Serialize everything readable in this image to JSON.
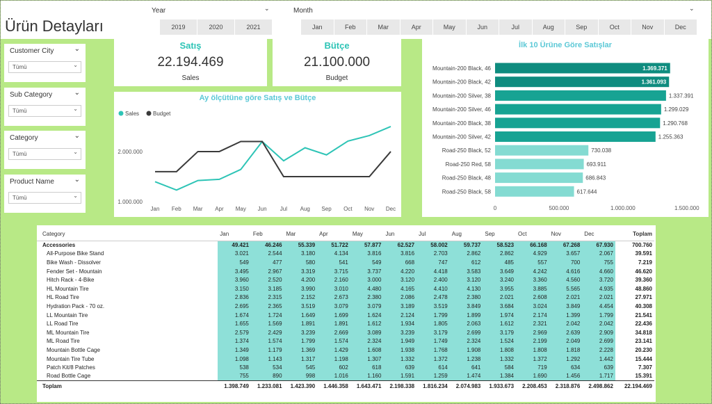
{
  "header": {
    "title": "Ürün Detayları"
  },
  "slicers": [
    {
      "label": "Year",
      "items": [
        "2019",
        "2020",
        "2021"
      ]
    },
    {
      "label": "Month",
      "items": [
        "Jan",
        "Feb",
        "Mar",
        "Apr",
        "May",
        "Jun",
        "Jul",
        "Aug",
        "Sep",
        "Oct",
        "Nov",
        "Dec"
      ]
    }
  ],
  "filters": [
    {
      "label": "Customer City",
      "value": "Tümü"
    },
    {
      "label": "Sub Category",
      "value": "Tümü"
    },
    {
      "label": "Category",
      "value": "Tümü"
    },
    {
      "label": "Product Name",
      "value": "Tümü"
    }
  ],
  "cards": [
    {
      "title": "Satış",
      "value": "22.194.469",
      "label": "Sales"
    },
    {
      "title": "Bütçe",
      "value": "21.100.000",
      "label": "Budget"
    }
  ],
  "chart_data": [
    {
      "type": "line",
      "title": "Ay ölçütüne göre Satış ve Bütçe",
      "categories": [
        "Jan",
        "Feb",
        "Mar",
        "Apr",
        "May",
        "Jun",
        "Jul",
        "Aug",
        "Sep",
        "Oct",
        "Nov",
        "Dec"
      ],
      "series": [
        {
          "name": "Sales",
          "color": "#2ec4b6",
          "values": [
            1398749,
            1233081,
            1423390,
            1446358,
            1643471,
            2198338,
            1816234,
            2074983,
            1933673,
            2208453,
            2318876,
            2498862
          ]
        },
        {
          "name": "Budget",
          "color": "#3a3a3a",
          "values": [
            1600000,
            1600000,
            2000000,
            2000000,
            2200000,
            2200000,
            1500000,
            1500000,
            1500000,
            1500000,
            1500000,
            2000000
          ]
        }
      ],
      "ylim": [
        850000,
        2650000
      ],
      "yticks": [
        {
          "value": 1000000,
          "label": "1.000.000"
        },
        {
          "value": 2000000,
          "label": "2.000.000"
        }
      ],
      "legend": "top-left",
      "grid": false
    },
    {
      "type": "bar",
      "orientation": "horizontal",
      "title": "İlk 10 Ürüne Göre Satışlar",
      "categories": [
        "Mountain-200 Black, 46",
        "Mountain-200 Black, 42",
        "Mountain-200 Silver, 38",
        "Mountain-200 Silver, 46",
        "Mountain-200 Black, 38",
        "Mountain-200 Silver, 42",
        "Road-250 Black, 52",
        "Road-250 Red, 58",
        "Road-250 Black, 48",
        "Road-250 Black, 58"
      ],
      "values": [
        1369371,
        1361093,
        1337391,
        1299029,
        1290768,
        1255363,
        730038,
        693911,
        686843,
        617644
      ],
      "value_labels": [
        "1.369.371",
        "1.361.093",
        "1.337.391",
        "1.299.029",
        "1.290.768",
        "1.255.363",
        "730.038",
        "693.911",
        "686.843",
        "617.644"
      ],
      "colors": [
        "#0f8c7f",
        "#0f8c7f",
        "#17a393",
        "#17a393",
        "#17a393",
        "#17a393",
        "#84dbd2",
        "#84dbd2",
        "#84dbd2",
        "#84dbd2"
      ],
      "xlim": [
        0,
        1610000
      ],
      "xticks": [
        0,
        {
          "value": 500000,
          "label": "500.000"
        },
        {
          "value": 1000000,
          "label": "1.000.000"
        },
        {
          "value": 1500000,
          "label": "1.500.000"
        }
      ],
      "grid": false
    }
  ],
  "table": {
    "columns": [
      "Category",
      "Jan",
      "Feb",
      "Mar",
      "Apr",
      "May",
      "Jun",
      "Jul",
      "Aug",
      "Sep",
      "Oct",
      "Nov",
      "Dec",
      "Toplam"
    ],
    "rows": [
      [
        "Accessories",
        "49.421",
        "46.246",
        "55.339",
        "51.722",
        "57.877",
        "62.527",
        "58.002",
        "59.737",
        "58.523",
        "66.168",
        "67.268",
        "67.930",
        "700.760"
      ],
      [
        "All-Purpose Bike Stand",
        "3.021",
        "2.544",
        "3.180",
        "4.134",
        "3.816",
        "3.816",
        "2.703",
        "2.862",
        "2.862",
        "4.929",
        "3.657",
        "2.067",
        "39.591"
      ],
      [
        "Bike Wash - Dissolver",
        "549",
        "477",
        "580",
        "541",
        "549",
        "668",
        "747",
        "612",
        "485",
        "557",
        "700",
        "755",
        "7.219"
      ],
      [
        "Fender Set - Mountain",
        "3.495",
        "2.967",
        "3.319",
        "3.715",
        "3.737",
        "4.220",
        "4.418",
        "3.583",
        "3.649",
        "4.242",
        "4.616",
        "4.660",
        "46.620"
      ],
      [
        "Hitch Rack - 4-Bike",
        "3.960",
        "2.520",
        "4.200",
        "2.160",
        "3.000",
        "3.120",
        "2.400",
        "3.120",
        "3.240",
        "3.360",
        "4.560",
        "3.720",
        "39.360"
      ],
      [
        "HL Mountain Tire",
        "3.150",
        "3.185",
        "3.990",
        "3.010",
        "4.480",
        "4.165",
        "4.410",
        "4.130",
        "3.955",
        "3.885",
        "5.565",
        "4.935",
        "48.860"
      ],
      [
        "HL Road Tire",
        "2.836",
        "2.315",
        "2.152",
        "2.673",
        "2.380",
        "2.086",
        "2.478",
        "2.380",
        "2.021",
        "2.608",
        "2.021",
        "2.021",
        "27.971"
      ],
      [
        "Hydration Pack - 70 oz.",
        "2.695",
        "2.365",
        "3.519",
        "3.079",
        "3.079",
        "3.189",
        "3.519",
        "3.849",
        "3.684",
        "3.024",
        "3.849",
        "4.454",
        "40.308"
      ],
      [
        "LL Mountain Tire",
        "1.674",
        "1.724",
        "1.649",
        "1.699",
        "1.624",
        "2.124",
        "1.799",
        "1.899",
        "1.974",
        "2.174",
        "1.399",
        "1.799",
        "21.541"
      ],
      [
        "LL Road Tire",
        "1.655",
        "1.569",
        "1.891",
        "1.891",
        "1.612",
        "1.934",
        "1.805",
        "2.063",
        "1.612",
        "2.321",
        "2.042",
        "2.042",
        "22.436"
      ],
      [
        "ML Mountain Tire",
        "2.579",
        "2.429",
        "3.239",
        "2.669",
        "3.089",
        "3.239",
        "3.179",
        "2.699",
        "3.179",
        "2.969",
        "2.639",
        "2.909",
        "34.818"
      ],
      [
        "ML Road Tire",
        "1.374",
        "1.574",
        "1.799",
        "1.574",
        "2.324",
        "1.949",
        "1.749",
        "2.324",
        "1.524",
        "2.199",
        "2.049",
        "2.699",
        "23.141"
      ],
      [
        "Mountain Bottle Cage",
        "1.349",
        "1.179",
        "1.369",
        "1.429",
        "1.608",
        "1.938",
        "1.768",
        "1.908",
        "1.808",
        "1.808",
        "1.818",
        "2.228",
        "20.230"
      ],
      [
        "Mountain Tire Tube",
        "1.098",
        "1.143",
        "1.317",
        "1.198",
        "1.307",
        "1.332",
        "1.372",
        "1.238",
        "1.332",
        "1.372",
        "1.292",
        "1.442",
        "15.444"
      ],
      [
        "Patch Kit/8 Patches",
        "538",
        "534",
        "545",
        "602",
        "618",
        "639",
        "614",
        "641",
        "584",
        "719",
        "634",
        "639",
        "7.307"
      ],
      [
        "Road Bottle Cage",
        "755",
        "890",
        "998",
        "1.016",
        "1.160",
        "1.591",
        "1.259",
        "1.474",
        "1.384",
        "1.690",
        "1.456",
        "1.717",
        "15.391"
      ]
    ],
    "total": [
      "Toplam",
      "1.398.749",
      "1.233.081",
      "1.423.390",
      "1.446.358",
      "1.643.471",
      "2.198.338",
      "1.816.234",
      "2.074.983",
      "1.933.673",
      "2.208.453",
      "2.318.876",
      "2.498.862",
      "22.194.469"
    ]
  }
}
